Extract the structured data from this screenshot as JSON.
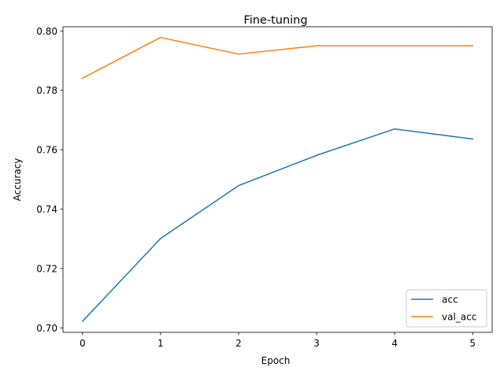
{
  "chart_data": {
    "type": "line",
    "title": "Fine-tuning",
    "xlabel": "Epoch",
    "ylabel": "Accuracy",
    "x": [
      0,
      1,
      2,
      3,
      4,
      5
    ],
    "xticks": [
      "0",
      "1",
      "2",
      "3",
      "4",
      "5"
    ],
    "yticks": [
      "0.70",
      "0.72",
      "0.74",
      "0.76",
      "0.78",
      "0.80"
    ],
    "xlim": [
      -0.25,
      5.25
    ],
    "ylim": [
      0.6985,
      0.8014
    ],
    "grid": false,
    "legend_position": "lower right",
    "series": [
      {
        "name": "acc",
        "color": "#1f77b4",
        "values": [
          0.7022,
          0.7301,
          0.7479,
          0.7581,
          0.767,
          0.7636
        ]
      },
      {
        "name": "val_acc",
        "color": "#ff7f0e",
        "values": [
          0.7841,
          0.7978,
          0.7922,
          0.795,
          0.795,
          0.795
        ]
      }
    ]
  }
}
